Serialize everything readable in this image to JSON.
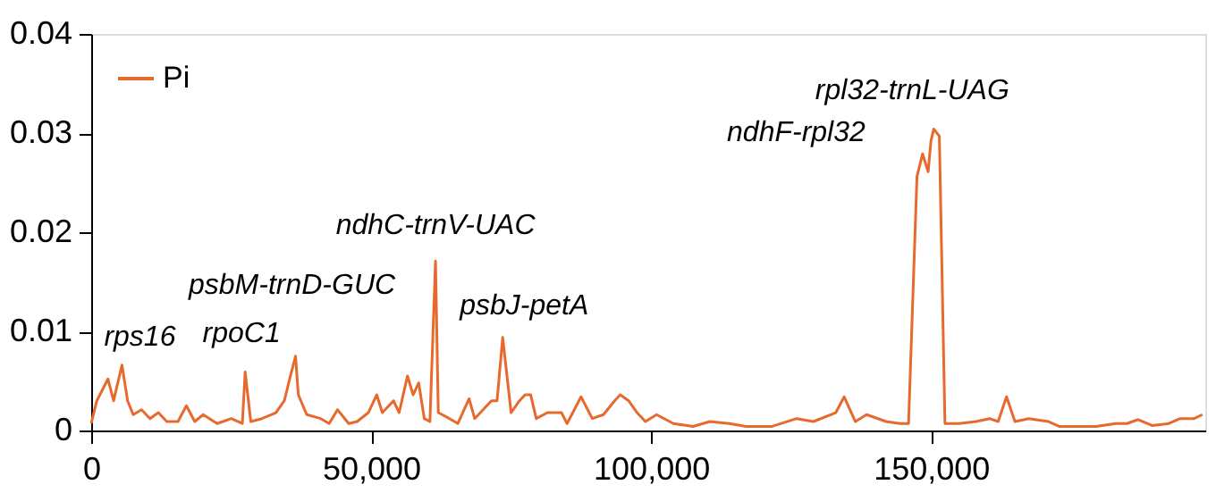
{
  "chart_data": {
    "type": "line",
    "legend": "top left",
    "grid": false,
    "marker": "none",
    "line_style": "solid",
    "xlim": [
      0,
      199000
    ],
    "xticks": [
      0,
      {
        "value": 50000,
        "label": "50,000"
      },
      {
        "value": 100000,
        "label": "100,000"
      },
      {
        "value": 150000,
        "label": "150,000"
      }
    ],
    "ylim": [
      0,
      0.04
    ],
    "yticks": [
      0,
      0.01,
      0.02,
      0.03,
      0.04
    ],
    "x": [
      0,
      1000,
      3000,
      4000,
      5500,
      6500,
      7500,
      9000,
      10500,
      12000,
      13500,
      15500,
      17000,
      18500,
      20000,
      22500,
      25000,
      27000,
      27500,
      28500,
      30500,
      33000,
      34500,
      35500,
      36500,
      37000,
      38500,
      41000,
      42500,
      44000,
      46000,
      47500,
      49500,
      51000,
      52000,
      54000,
      55000,
      56500,
      57500,
      58500,
      59500,
      60500,
      61500,
      62000,
      64000,
      65500,
      67500,
      68500,
      71500,
      72500,
      73500,
      75000,
      76500,
      77500,
      78500,
      79500,
      81500,
      84000,
      85000,
      87500,
      89500,
      91500,
      93500,
      94500,
      96000,
      97500,
      99000,
      101000,
      104000,
      107500,
      110500,
      114000,
      117000,
      121500,
      126000,
      129000,
      133000,
      134500,
      136500,
      138500,
      142000,
      144500,
      146000,
      147500,
      148500,
      149500,
      150000,
      150500,
      151500,
      152500,
      155000,
      158000,
      160500,
      162000,
      163500,
      165000,
      167500,
      171000,
      173000,
      176500,
      179500,
      183000,
      185000,
      187000,
      189500,
      192500,
      194500,
      197000,
      198500
    ],
    "series": [
      {
        "name": "Pi",
        "color": "#e8692e",
        "values": [
          0.0007,
          0.003,
          0.0052,
          0.003,
          0.0066,
          0.003,
          0.0016,
          0.0021,
          0.0012,
          0.0018,
          0.0009,
          0.0009,
          0.0025,
          0.0009,
          0.0016,
          0.0007,
          0.0012,
          0.0007,
          0.0059,
          0.0009,
          0.0012,
          0.0018,
          0.003,
          0.0053,
          0.0075,
          0.0036,
          0.0016,
          0.0012,
          0.0007,
          0.0021,
          0.0007,
          0.0009,
          0.0018,
          0.0036,
          0.0018,
          0.003,
          0.0018,
          0.0055,
          0.0036,
          0.0048,
          0.0012,
          0.0009,
          0.0171,
          0.0018,
          0.0012,
          0.0007,
          0.0032,
          0.0012,
          0.003,
          0.003,
          0.0094,
          0.0018,
          0.003,
          0.0036,
          0.0036,
          0.0012,
          0.0018,
          0.0018,
          0.0007,
          0.0034,
          0.0012,
          0.0016,
          0.003,
          0.0036,
          0.003,
          0.0018,
          0.0009,
          0.0016,
          0.0007,
          0.0004,
          0.0009,
          0.0007,
          0.0004,
          0.0004,
          0.0012,
          0.0009,
          0.0018,
          0.0034,
          0.0009,
          0.0016,
          0.0009,
          0.0007,
          0.0007,
          0.0256,
          0.0279,
          0.0261,
          0.0292,
          0.0304,
          0.0297,
          0.0007,
          0.0007,
          0.0009,
          0.0012,
          0.0009,
          0.0034,
          0.0009,
          0.0012,
          0.0009,
          0.0004,
          0.0004,
          0.0004,
          0.0007,
          0.0007,
          0.0011,
          0.0005,
          0.0007,
          0.0012,
          0.0012,
          0.0016
        ]
      }
    ],
    "annotations": [
      {
        "text": "rps16",
        "x": 5500,
        "y": 0.0066
      },
      {
        "text": "rpoC1",
        "x": 27500,
        "y": 0.0059
      },
      {
        "text": "psbM-trnD-GUC",
        "x": 36500,
        "y": 0.0075
      },
      {
        "text": "ndhC-trnV-UAC",
        "x": 61500,
        "y": 0.0171
      },
      {
        "text": "psbJ-petA",
        "x": 73500,
        "y": 0.0094
      },
      {
        "text": "ndhF-rpl32",
        "x": 148500,
        "y": 0.0279
      },
      {
        "text": "rpl32-trnL-UAG",
        "x": 150500,
        "y": 0.0304
      }
    ]
  }
}
